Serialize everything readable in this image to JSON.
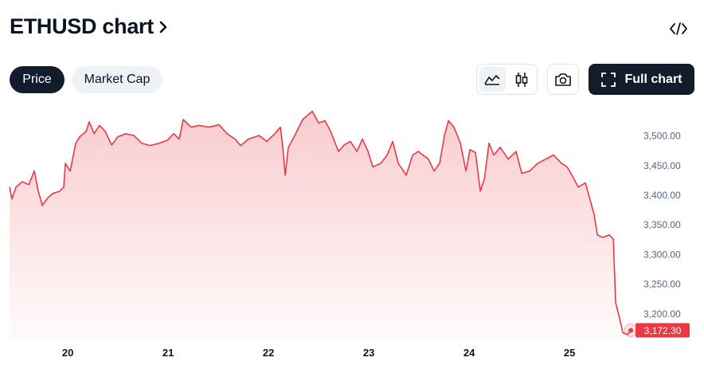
{
  "header": {
    "title": "ETHUSD chart"
  },
  "tabs": [
    "Price",
    "Market Cap"
  ],
  "full_chart_button": "Full chart",
  "chart_data": {
    "type": "line",
    "color": "#ea3943",
    "grid": false,
    "x": [
      19.421,
      19.444,
      19.484,
      19.548,
      19.611,
      19.667,
      19.706,
      19.746,
      19.802,
      19.849,
      19.921,
      19.96,
      19.976,
      20.024,
      20.079,
      20.119,
      20.183,
      20.214,
      20.262,
      20.317,
      20.373,
      20.437,
      20.5,
      20.579,
      20.659,
      20.738,
      20.817,
      20.913,
      20.992,
      21.056,
      21.111,
      21.151,
      21.23,
      21.31,
      21.405,
      21.508,
      21.587,
      21.667,
      21.722,
      21.802,
      21.905,
      21.984,
      22.063,
      22.119,
      22.143,
      22.167,
      22.198,
      22.262,
      22.341,
      22.437,
      22.5,
      22.563,
      22.619,
      22.698,
      22.754,
      22.817,
      22.881,
      22.937,
      22.992,
      23.04,
      23.119,
      23.183,
      23.238,
      23.294,
      23.373,
      23.437,
      23.492,
      23.595,
      23.651,
      23.706,
      23.754,
      23.794,
      23.849,
      23.913,
      23.968,
      24.008,
      24.063,
      24.111,
      24.151,
      24.198,
      24.246,
      24.31,
      24.389,
      24.468,
      24.524,
      24.603,
      24.683,
      24.762,
      24.841,
      24.921,
      24.976,
      25.024,
      25.087,
      25.159,
      25.214,
      25.246,
      25.278,
      25.333,
      25.397,
      25.437,
      25.46,
      25.5,
      25.532,
      25.579,
      25.611
    ],
    "values": [
      3414,
      3394,
      3414,
      3423,
      3418,
      3441,
      3407,
      3383,
      3396,
      3403,
      3407,
      3414,
      3454,
      3441,
      3488,
      3499,
      3508,
      3524,
      3504,
      3518,
      3508,
      3485,
      3499,
      3504,
      3501,
      3488,
      3484,
      3488,
      3493,
      3504,
      3495,
      3528,
      3515,
      3518,
      3515,
      3519,
      3504,
      3495,
      3484,
      3495,
      3501,
      3491,
      3504,
      3515,
      3481,
      3434,
      3481,
      3501,
      3528,
      3542,
      3522,
      3526,
      3508,
      3474,
      3485,
      3491,
      3474,
      3495,
      3474,
      3448,
      3454,
      3468,
      3491,
      3454,
      3434,
      3468,
      3474,
      3461,
      3441,
      3454,
      3501,
      3526,
      3515,
      3488,
      3441,
      3477,
      3472,
      3407,
      3427,
      3488,
      3468,
      3481,
      3461,
      3474,
      3437,
      3441,
      3454,
      3461,
      3468,
      3454,
      3448,
      3434,
      3414,
      3421,
      3387,
      3367,
      3333,
      3329,
      3333,
      3326,
      3219,
      3192,
      3168,
      3165,
      3172.3
    ],
    "last_price": {
      "value": 3172.3,
      "label": "3,172.30"
    },
    "xlim": [
      19.42,
      25.65
    ],
    "xticks": [
      20,
      21,
      22,
      23,
      24,
      25
    ],
    "ylim": [
      3158,
      3548
    ],
    "yticks": [
      {
        "value": 3200,
        "label": "3,200.00"
      },
      {
        "value": 3250,
        "label": "3,250.00"
      },
      {
        "value": 3300,
        "label": "3,300.00"
      },
      {
        "value": 3350,
        "label": "3,350.00"
      },
      {
        "value": 3400,
        "label": "3,400.00"
      },
      {
        "value": 3450,
        "label": "3,450.00"
      },
      {
        "value": 3500,
        "label": "3,500.00"
      }
    ]
  }
}
